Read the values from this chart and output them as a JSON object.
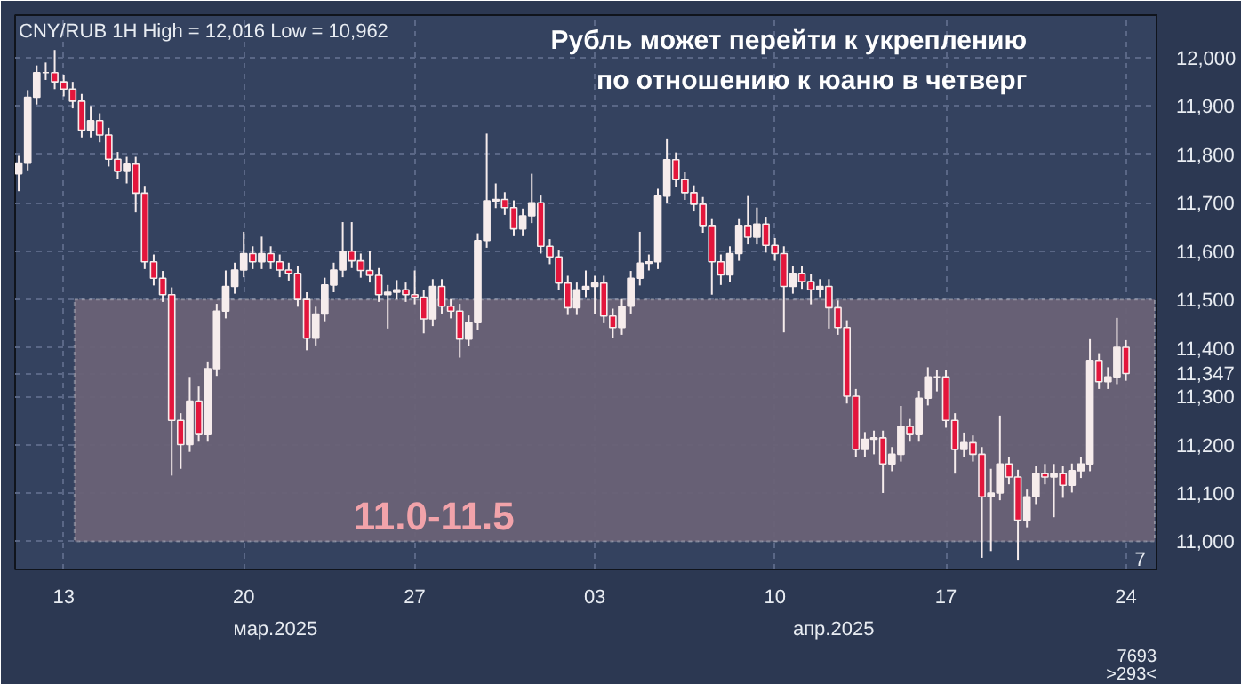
{
  "chart_data": {
    "type": "candlestick",
    "title": "Рубль может перейти к укреплению по отношению к юаню в четверг",
    "subtitle": "CNY/RUB 1H High = 12,016 Low = 10,962",
    "categories": [
      null,
      null,
      null,
      null,
      null,
      "13",
      null,
      null,
      null,
      null,
      null,
      null,
      null,
      null,
      null,
      null,
      null,
      null,
      null,
      null,
      null,
      null,
      null,
      null,
      null,
      "20",
      null,
      null,
      null,
      null,
      null,
      null,
      null,
      null,
      null,
      null,
      null,
      null,
      null,
      null,
      null,
      null,
      null,
      null,
      "27",
      null,
      null,
      null,
      null,
      null,
      null,
      null,
      null,
      null,
      null,
      null,
      null,
      null,
      null,
      null,
      null,
      null,
      null,
      null,
      "03",
      null,
      null,
      null,
      null,
      null,
      null,
      null,
      null,
      null,
      null,
      null,
      null,
      null,
      null,
      null,
      null,
      null,
      null,
      null,
      "10",
      null,
      null,
      null,
      null,
      null,
      null,
      null,
      null,
      null,
      null,
      null,
      null,
      null,
      null,
      null,
      null,
      null,
      null,
      "17",
      null,
      null,
      null,
      null,
      null,
      null,
      null,
      null,
      null,
      null,
      null,
      null,
      null,
      null,
      null,
      null,
      null,
      null,
      null,
      "24"
    ],
    "ohlc": [
      [
        11760,
        11797,
        11724,
        11782
      ],
      [
        11782,
        11933,
        11767,
        11918
      ],
      [
        11918,
        11984,
        11903,
        11969
      ],
      [
        11969,
        11990,
        11954,
        11969
      ],
      [
        11969,
        12016,
        11935,
        11950
      ],
      [
        11950,
        11965,
        11920,
        11935
      ],
      [
        11935,
        11950,
        11895,
        11910
      ],
      [
        11910,
        11925,
        11835,
        11850
      ],
      [
        11850,
        11900,
        11835,
        11870
      ],
      [
        11870,
        11885,
        11825,
        11840
      ],
      [
        11840,
        11855,
        11775,
        11790
      ],
      [
        11790,
        11805,
        11750,
        11765
      ],
      [
        11765,
        11795,
        11740,
        11780
      ],
      [
        11780,
        11795,
        11680,
        11720
      ],
      [
        11720,
        11735,
        11563,
        11578
      ],
      [
        11578,
        11593,
        11529,
        11544
      ],
      [
        11544,
        11559,
        11495,
        11510
      ],
      [
        11510,
        11525,
        11136,
        11250
      ],
      [
        11250,
        11265,
        11150,
        11200
      ],
      [
        11200,
        11340,
        11185,
        11290
      ],
      [
        11290,
        11320,
        11206,
        11221
      ],
      [
        11221,
        11372,
        11206,
        11357
      ],
      [
        11357,
        11491,
        11342,
        11476
      ],
      [
        11476,
        11560,
        11461,
        11527
      ],
      [
        11527,
        11576,
        11512,
        11561
      ],
      [
        11561,
        11640,
        11546,
        11595
      ],
      [
        11595,
        11610,
        11563,
        11578
      ],
      [
        11578,
        11630,
        11563,
        11595
      ],
      [
        11595,
        11610,
        11563,
        11578
      ],
      [
        11578,
        11593,
        11546,
        11561
      ],
      [
        11561,
        11576,
        11539,
        11554
      ],
      [
        11554,
        11569,
        11485,
        11500
      ],
      [
        11500,
        11515,
        11395,
        11420
      ],
      [
        11420,
        11485,
        11405,
        11470
      ],
      [
        11470,
        11545,
        11455,
        11530
      ],
      [
        11530,
        11576,
        11515,
        11561
      ],
      [
        11561,
        11660,
        11546,
        11600
      ],
      [
        11600,
        11660,
        11565,
        11580
      ],
      [
        11580,
        11595,
        11545,
        11560
      ],
      [
        11560,
        11600,
        11535,
        11550
      ],
      [
        11550,
        11565,
        11495,
        11510
      ],
      [
        11510,
        11530,
        11440,
        11515
      ],
      [
        11515,
        11540,
        11500,
        11520
      ],
      [
        11520,
        11535,
        11495,
        11510
      ],
      [
        11510,
        11560,
        11490,
        11505
      ],
      [
        11505,
        11520,
        11430,
        11460
      ],
      [
        11460,
        11542,
        11445,
        11527
      ],
      [
        11527,
        11542,
        11471,
        11486
      ],
      [
        11486,
        11501,
        11461,
        11476
      ],
      [
        11476,
        11491,
        11380,
        11418
      ],
      [
        11418,
        11467,
        11403,
        11452
      ],
      [
        11452,
        11637,
        11437,
        11622
      ],
      [
        11622,
        11843,
        11607,
        11704
      ],
      [
        11704,
        11740,
        11689,
        11707
      ],
      [
        11707,
        11722,
        11675,
        11690
      ],
      [
        11690,
        11705,
        11631,
        11646
      ],
      [
        11646,
        11688,
        11631,
        11673
      ],
      [
        11673,
        11760,
        11658,
        11700
      ],
      [
        11700,
        11715,
        11595,
        11610
      ],
      [
        11610,
        11625,
        11573,
        11588
      ],
      [
        11588,
        11603,
        11519,
        11534
      ],
      [
        11534,
        11549,
        11468,
        11483
      ],
      [
        11483,
        11535,
        11468,
        11520
      ],
      [
        11520,
        11560,
        11505,
        11527
      ],
      [
        11527,
        11549,
        11470,
        11534
      ],
      [
        11534,
        11549,
        11451,
        11466
      ],
      [
        11466,
        11481,
        11420,
        11442
      ],
      [
        11442,
        11501,
        11427,
        11486
      ],
      [
        11486,
        11559,
        11471,
        11544
      ],
      [
        11544,
        11640,
        11529,
        11575
      ],
      [
        11575,
        11593,
        11560,
        11578
      ],
      [
        11578,
        11729,
        11563,
        11714
      ],
      [
        11714,
        11833,
        11699,
        11789
      ],
      [
        11789,
        11804,
        11733,
        11748
      ],
      [
        11748,
        11763,
        11706,
        11721
      ],
      [
        11721,
        11736,
        11682,
        11697
      ],
      [
        11697,
        11712,
        11638,
        11653
      ],
      [
        11653,
        11668,
        11510,
        11578
      ],
      [
        11578,
        11593,
        11530,
        11551
      ],
      [
        11551,
        11610,
        11536,
        11595
      ],
      [
        11595,
        11668,
        11580,
        11653
      ],
      [
        11653,
        11714,
        11614,
        11629
      ],
      [
        11629,
        11690,
        11614,
        11656
      ],
      [
        11656,
        11671,
        11597,
        11612
      ],
      [
        11612,
        11627,
        11580,
        11595
      ],
      [
        11595,
        11610,
        11432,
        11527
      ],
      [
        11527,
        11569,
        11512,
        11554
      ],
      [
        11554,
        11569,
        11522,
        11537
      ],
      [
        11537,
        11552,
        11490,
        11520
      ],
      [
        11520,
        11542,
        11505,
        11527
      ],
      [
        11527,
        11542,
        11440,
        11483
      ],
      [
        11483,
        11498,
        11427,
        11442
      ],
      [
        11442,
        11457,
        11285,
        11300
      ],
      [
        11300,
        11315,
        11175,
        11190
      ],
      [
        11190,
        11226,
        11175,
        11211
      ],
      [
        11211,
        11229,
        11180,
        11214
      ],
      [
        11214,
        11229,
        11100,
        11160
      ],
      [
        11160,
        11195,
        11145,
        11180
      ],
      [
        11180,
        11280,
        11165,
        11238
      ],
      [
        11238,
        11253,
        11206,
        11221
      ],
      [
        11221,
        11311,
        11206,
        11296
      ],
      [
        11296,
        11360,
        11281,
        11340
      ],
      [
        11340,
        11355,
        11310,
        11340
      ],
      [
        11340,
        11355,
        11235,
        11250
      ],
      [
        11250,
        11265,
        11140,
        11190
      ],
      [
        11190,
        11225,
        11175,
        11204
      ],
      [
        11204,
        11219,
        11165,
        11180
      ],
      [
        11180,
        11195,
        10966,
        11092
      ],
      [
        11092,
        11150,
        10980,
        11100
      ],
      [
        11100,
        11260,
        11085,
        11160
      ],
      [
        11160,
        11175,
        11118,
        11133
      ],
      [
        11133,
        11148,
        10962,
        11044
      ],
      [
        11044,
        11107,
        11029,
        11092
      ],
      [
        11092,
        11155,
        11077,
        11140
      ],
      [
        11140,
        11160,
        11118,
        11133
      ],
      [
        11133,
        11160,
        11050,
        11140
      ],
      [
        11140,
        11155,
        11090,
        11116
      ],
      [
        11116,
        11161,
        11101,
        11146
      ],
      [
        11146,
        11175,
        11131,
        11160
      ],
      [
        11160,
        11418,
        11145,
        11374
      ],
      [
        11374,
        11389,
        11315,
        11330
      ],
      [
        11330,
        11360,
        11315,
        11340
      ],
      [
        11340,
        11462,
        11325,
        11401
      ],
      [
        11401,
        11416,
        11332,
        11347
      ]
    ],
    "ylim": [
      10942,
      12088
    ],
    "yticks": [
      {
        "value": 11000,
        "label": "11,000"
      },
      {
        "value": 11100,
        "label": "11,100"
      },
      {
        "value": 11200,
        "label": "11,200"
      },
      {
        "value": 11300,
        "label": "11,300"
      },
      {
        "value": 11347,
        "label": "11,347"
      },
      {
        "value": 11400,
        "label": "11,400"
      },
      {
        "value": 11500,
        "label": "11,500"
      },
      {
        "value": 11600,
        "label": "11,600"
      },
      {
        "value": 11700,
        "label": "11,700"
      },
      {
        "value": 11800,
        "label": "11,800"
      },
      {
        "value": 11900,
        "label": "11,900"
      },
      {
        "value": 12000,
        "label": "12,000"
      }
    ],
    "bands": [
      {
        "axis": "y",
        "from": 11000,
        "to": 11500,
        "label": "11.0-11.5",
        "color": "#6a6276"
      }
    ],
    "annotations": [
      "мар.2025",
      "апр.2025",
      "7",
      "7693",
      ">293<"
    ],
    "grid": true
  }
}
